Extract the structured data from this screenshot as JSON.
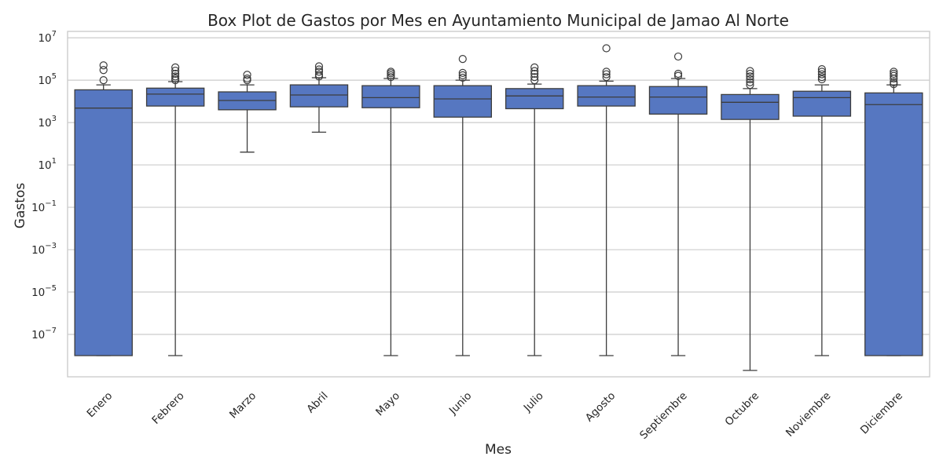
{
  "chart_data": {
    "type": "box",
    "title": "Box Plot de Gastos por Mes en Ayuntamiento Municipal de Jamao Al Norte",
    "xlabel": "Mes",
    "ylabel": "Gastos",
    "yscale": "log",
    "ylim": [
      1e-09,
      20000000.0
    ],
    "y_ticks": [
      {
        "base": "10",
        "exp": "7",
        "value": 10000000.0
      },
      {
        "base": "10",
        "exp": "5",
        "value": 100000.0
      },
      {
        "base": "10",
        "exp": "3",
        "value": 1000.0
      },
      {
        "base": "10",
        "exp": "1",
        "value": 10.0
      },
      {
        "base": "10",
        "exp": "−1",
        "value": 0.1
      },
      {
        "base": "10",
        "exp": "−3",
        "value": 0.001
      },
      {
        "base": "10",
        "exp": "−5",
        "value": 1e-05
      },
      {
        "base": "10",
        "exp": "−7",
        "value": 1e-07
      }
    ],
    "grid": true,
    "box_color": "#5677c1",
    "edge_color": "#3d3d3d",
    "categories": [
      "Enero",
      "Febrero",
      "Marzo",
      "Abril",
      "Mayo",
      "Junio",
      "Julio",
      "Agosto",
      "Septiembre",
      "Octubre",
      "Noviembre",
      "Diciembre"
    ],
    "boxes": [
      {
        "whislo": 1e-08,
        "q1": 1e-08,
        "med": 4800,
        "q3": 35000,
        "whishi": 60000,
        "fliers": [
          100000,
          300000,
          500000
        ]
      },
      {
        "whislo": 1e-08,
        "q1": 6000,
        "med": 22000,
        "q3": 42000,
        "whishi": 85000,
        "fliers": [
          100000,
          120000,
          150000,
          200000,
          280000,
          400000
        ]
      },
      {
        "whislo": 40,
        "q1": 4000,
        "med": 11000,
        "q3": 28000,
        "whishi": 60000,
        "fliers": [
          100000,
          120000,
          180000
        ]
      },
      {
        "whislo": 350,
        "q1": 5500,
        "med": 20000,
        "q3": 60000,
        "whishi": 130000,
        "fliers": [
          150000,
          180000,
          250000,
          320000,
          450000
        ]
      },
      {
        "whislo": 1e-08,
        "q1": 5000,
        "med": 15000,
        "q3": 55000,
        "whishi": 120000,
        "fliers": [
          140000,
          170000,
          210000,
          250000
        ]
      },
      {
        "whislo": 1e-08,
        "q1": 1800,
        "med": 13000,
        "q3": 55000,
        "whishi": 100000,
        "fliers": [
          130000,
          170000,
          220000,
          1000000
        ]
      },
      {
        "whislo": 1e-08,
        "q1": 4500,
        "med": 18000,
        "q3": 40000,
        "whishi": 65000,
        "fliers": [
          100000,
          140000,
          200000,
          270000,
          400000
        ]
      },
      {
        "whislo": 1e-08,
        "q1": 6000,
        "med": 16000,
        "q3": 55000,
        "whishi": 90000,
        "fliers": [
          140000,
          190000,
          250000,
          3200000
        ]
      },
      {
        "whislo": 1e-08,
        "q1": 2500,
        "med": 16000,
        "q3": 50000,
        "whishi": 120000,
        "fliers": [
          160000,
          200000,
          1300000
        ]
      },
      {
        "whislo": 2e-09,
        "q1": 1400,
        "med": 9000,
        "q3": 21000,
        "whishi": 40000,
        "fliers": [
          60000,
          80000,
          110000,
          150000,
          200000,
          270000
        ]
      },
      {
        "whislo": 1e-08,
        "q1": 2000,
        "med": 15000,
        "q3": 30000,
        "whishi": 60000,
        "fliers": [
          110000,
          140000,
          190000,
          250000,
          330000
        ]
      },
      {
        "whislo": 1e-08,
        "q1": 1e-08,
        "med": 7000,
        "q3": 25000,
        "whishi": 60000,
        "fliers": [
          65000,
          80000,
          120000,
          160000,
          200000,
          250000
        ]
      }
    ]
  }
}
